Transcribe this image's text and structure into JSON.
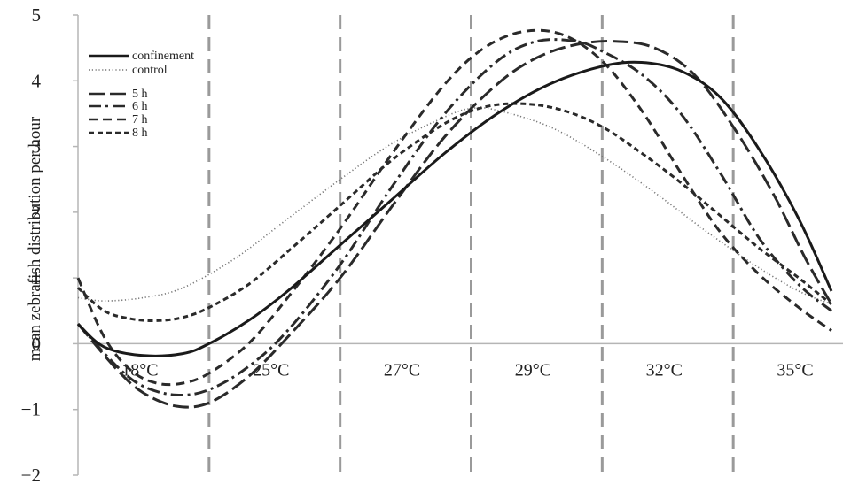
{
  "chart_data": {
    "type": "line",
    "ylabel": "mean zebrafish distribution per hour",
    "ylim": [
      -2,
      5
    ],
    "yticks": [
      -2,
      -1,
      0,
      1,
      2,
      3,
      4,
      5
    ],
    "categories": [
      "18°C",
      "25°C",
      "27°C",
      "29°C",
      "32°C",
      "35°C"
    ],
    "xlim": [
      0,
      6
    ],
    "dividers": [
      1,
      2,
      3,
      4,
      5
    ],
    "legend_position": "top-left",
    "series": [
      {
        "name": "confinement",
        "style": "solid",
        "x": [
          0,
          0.2,
          0.5,
          0.8,
          1.0,
          1.3,
          1.6,
          2.0,
          2.4,
          2.8,
          3.2,
          3.6,
          4.0,
          4.3,
          4.6,
          4.9,
          5.2,
          5.5,
          5.75
        ],
        "y": [
          0.3,
          -0.05,
          -0.18,
          -0.15,
          0.0,
          0.35,
          0.8,
          1.5,
          2.2,
          2.9,
          3.5,
          3.95,
          4.22,
          4.28,
          4.15,
          3.75,
          2.95,
          1.9,
          0.8
        ]
      },
      {
        "name": "control",
        "style": "dotted",
        "x": [
          0,
          0.2,
          0.5,
          0.8,
          1.2,
          1.6,
          2.0,
          2.4,
          2.8,
          3.0,
          3.2,
          3.6,
          4.0,
          4.4,
          4.8,
          5.2,
          5.5,
          5.75
        ],
        "y": [
          0.7,
          0.65,
          0.7,
          0.85,
          1.3,
          1.9,
          2.5,
          3.05,
          3.45,
          3.58,
          3.55,
          3.3,
          2.85,
          2.3,
          1.7,
          1.15,
          0.8,
          0.6
        ]
      },
      {
        "name": "5 h",
        "style": "long-dash",
        "x": [
          0,
          0.3,
          0.5,
          0.75,
          1.0,
          1.3,
          1.6,
          2.0,
          2.4,
          2.8,
          3.2,
          3.5,
          3.8,
          4.1,
          4.4,
          4.7,
          5.0,
          5.3,
          5.55,
          5.75
        ],
        "y": [
          0.3,
          -0.4,
          -0.75,
          -0.95,
          -0.9,
          -0.5,
          0.1,
          1.0,
          2.1,
          3.15,
          3.95,
          4.35,
          4.55,
          4.6,
          4.5,
          4.1,
          3.3,
          2.3,
          1.3,
          0.6
        ]
      },
      {
        "name": "6 h",
        "style": "dash-dot",
        "x": [
          0,
          0.3,
          0.5,
          0.75,
          1.0,
          1.3,
          1.6,
          2.0,
          2.4,
          2.8,
          3.2,
          3.5,
          3.8,
          4.0,
          4.3,
          4.6,
          4.9,
          5.2,
          5.5,
          5.75
        ],
        "y": [
          0.3,
          -0.35,
          -0.65,
          -0.78,
          -0.7,
          -0.35,
          0.2,
          1.2,
          2.4,
          3.5,
          4.3,
          4.6,
          4.6,
          4.45,
          4.1,
          3.5,
          2.6,
          1.6,
          0.9,
          0.5
        ]
      },
      {
        "name": "7 h",
        "style": "dashed",
        "x": [
          0,
          0.2,
          0.4,
          0.6,
          0.8,
          1.0,
          1.3,
          1.6,
          2.0,
          2.4,
          2.8,
          3.1,
          3.4,
          3.7,
          4.0,
          4.3,
          4.6,
          4.9,
          5.2,
          5.5,
          5.75
        ],
        "y": [
          1.0,
          0.1,
          -0.4,
          -0.6,
          -0.6,
          -0.45,
          0.0,
          0.7,
          1.75,
          2.9,
          3.95,
          4.5,
          4.75,
          4.7,
          4.3,
          3.55,
          2.6,
          1.7,
          1.05,
          0.55,
          0.2
        ]
      },
      {
        "name": "8 h",
        "style": "short-dash",
        "x": [
          0,
          0.2,
          0.4,
          0.6,
          0.8,
          1.0,
          1.3,
          1.6,
          2.0,
          2.4,
          2.8,
          3.1,
          3.4,
          3.7,
          4.0,
          4.3,
          4.6,
          4.9,
          5.2,
          5.5,
          5.75
        ],
        "y": [
          0.85,
          0.5,
          0.38,
          0.35,
          0.4,
          0.55,
          0.9,
          1.4,
          2.1,
          2.8,
          3.35,
          3.6,
          3.65,
          3.55,
          3.3,
          2.9,
          2.45,
          1.95,
          1.45,
          1.0,
          0.6
        ]
      }
    ]
  }
}
